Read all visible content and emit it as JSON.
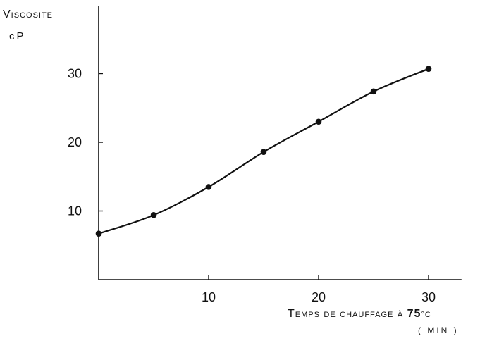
{
  "chart_data": {
    "type": "line",
    "ylabel": "Viscosite",
    "ylabel_unit": "cP",
    "xlabel": "Temps de chauffage à 75°C",
    "xlabel_unit": "( min )",
    "xlim": [
      0,
      33
    ],
    "ylim": [
      0,
      40
    ],
    "x_ticks": [
      10,
      20,
      30
    ],
    "y_ticks": [
      10,
      20,
      30
    ],
    "grid": false,
    "points": [
      {
        "x": 0,
        "y": 6.7
      },
      {
        "x": 5,
        "y": 9.4
      },
      {
        "x": 10,
        "y": 13.5
      },
      {
        "x": 15,
        "y": 18.6
      },
      {
        "x": 20,
        "y": 23.0
      },
      {
        "x": 25,
        "y": 27.4
      },
      {
        "x": 30,
        "y": 30.7
      }
    ],
    "colors": {
      "ink": "#111111",
      "background": "#ffffff"
    }
  }
}
